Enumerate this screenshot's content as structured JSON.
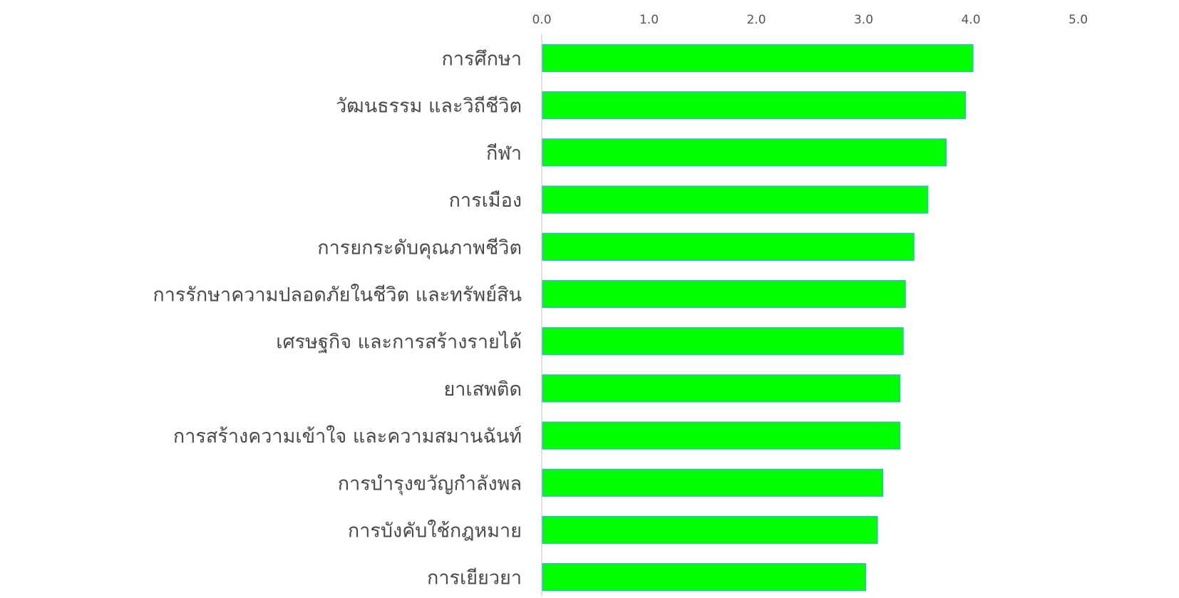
{
  "chart_data": {
    "type": "bar",
    "orientation": "horizontal",
    "title": "",
    "xlabel": "",
    "ylabel": "",
    "xlim": [
      0,
      5.0
    ],
    "x_ticks": [
      "0.0",
      "1.0",
      "2.0",
      "3.0",
      "4.0",
      "5.0"
    ],
    "x_axis_position": "top",
    "grid": false,
    "legend": "none",
    "bar_color": "#00ff00",
    "bar_edge_color": "#3fa9f5",
    "categories": [
      "การศึกษา",
      "วัฒนธรรม และวิถีชีวิต",
      "กีฬา",
      "การเมือง",
      "การยกระดับคุณภาพชีวิต",
      "การรักษาความปลอดภัยในชีวิต และทรัพย์สิน",
      "เศรษฐกิจ และการสร้างรายได้",
      "ยาเสพติด",
      "การสร้างความเข้าใจ และความสมานฉันท์",
      "การบำรุงขวัญกำลังพล",
      "การบังคับใช้กฎหมาย",
      "การเยียวยา"
    ],
    "values": [
      4.02,
      3.95,
      3.77,
      3.6,
      3.47,
      3.39,
      3.37,
      3.34,
      3.34,
      3.18,
      3.13,
      3.02
    ]
  }
}
